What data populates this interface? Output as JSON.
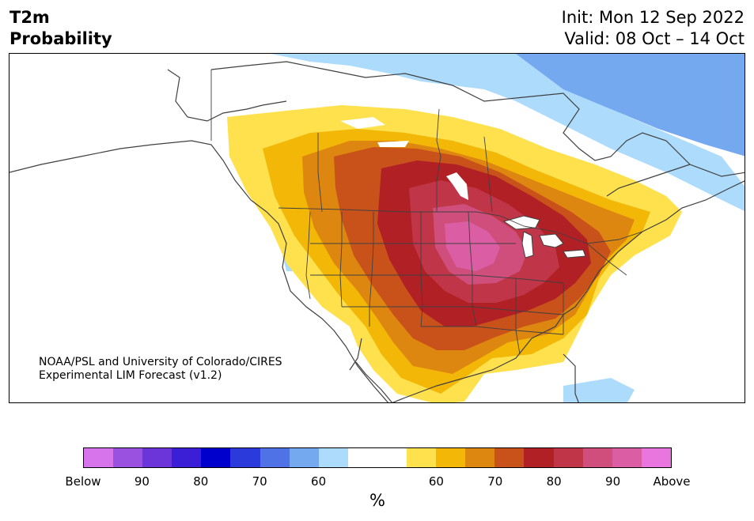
{
  "title": {
    "line1": "T2m",
    "line2": "Probability"
  },
  "header": {
    "init": "Init: Mon 12 Sep 2022",
    "valid": "Valid: 08 Oct – 14 Oct"
  },
  "credit": {
    "line1": "NOAA/PSL and University of Colorado/CIRES",
    "line2": "Experimental LIM Forecast (v1.2)"
  },
  "colorbar": {
    "colors": [
      "#d774ec",
      "#9b51e0",
      "#6b35da",
      "#3a1fd6",
      "#0000cd",
      "#2b3adb",
      "#4f73e6",
      "#74a9f0",
      "#acdbfb",
      "#ffffff",
      "#ffffff",
      "#ffe14d",
      "#f2b707",
      "#de8710",
      "#c9521b",
      "#b02024",
      "#c03548",
      "#cf4e7b",
      "#db5ea4",
      "#e876de"
    ],
    "labels": [
      "Below",
      "90",
      "80",
      "70",
      "60",
      "60",
      "70",
      "80",
      "90",
      "Above"
    ],
    "units": "%"
  },
  "map": {
    "region": "North America",
    "below_colors": {
      "light": "#acdbfb",
      "medium": "#74a9f0"
    },
    "above_colors": {
      "p50": "#ffe14d",
      "p60": "#f2b707",
      "p65": "#de8710",
      "p70": "#c9521b",
      "p75": "#b02024",
      "p80": "#c03548",
      "p85": "#cf4e7b",
      "p90": "#db5ea4"
    }
  }
}
